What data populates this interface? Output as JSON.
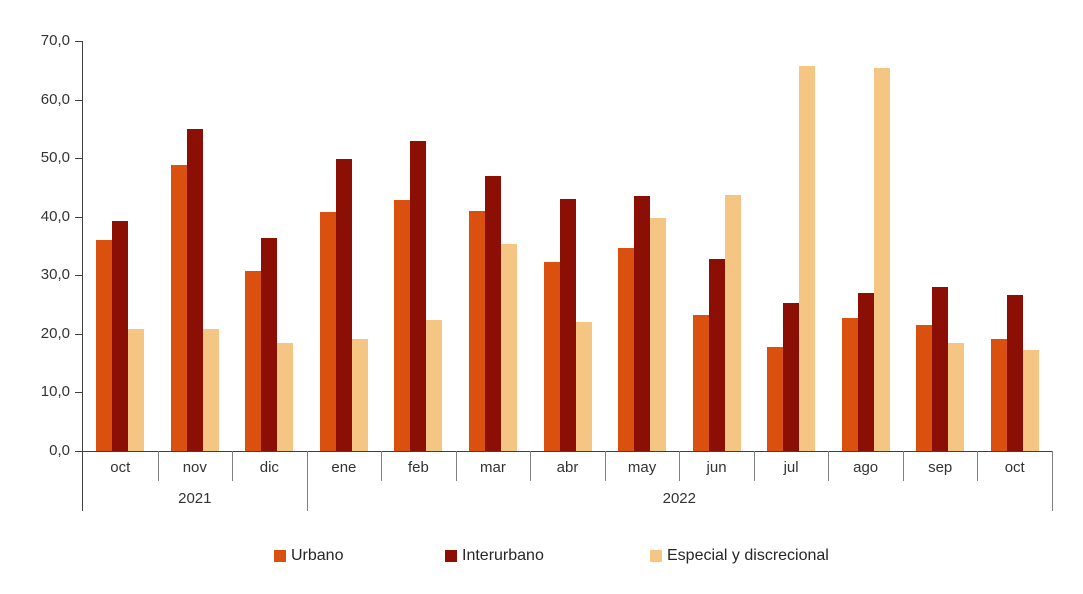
{
  "chart_data": {
    "type": "bar",
    "title": "",
    "xlabel": "",
    "ylabel": "",
    "ylim": [
      0,
      70
    ],
    "y_tick_step": 10,
    "y_tick_labels": [
      "0,0",
      "10,0",
      "20,0",
      "30,0",
      "40,0",
      "50,0",
      "60,0",
      "70,0"
    ],
    "grid": false,
    "legend_position": "bottom",
    "categories": [
      "oct",
      "nov",
      "dic",
      "ene",
      "feb",
      "mar",
      "abr",
      "may",
      "jun",
      "jul",
      "ago",
      "sep",
      "oct"
    ],
    "year_groups": [
      {
        "label": "2021",
        "months": 3
      },
      {
        "label": "2022",
        "months": 10
      }
    ],
    "series": [
      {
        "name": "Urbano",
        "color": "#D9500F",
        "values": [
          36.1,
          48.8,
          30.7,
          40.8,
          42.8,
          40.9,
          32.3,
          34.7,
          23.3,
          17.8,
          22.7,
          21.5,
          19.1
        ]
      },
      {
        "name": "Interurbano",
        "color": "#8C0F06",
        "values": [
          39.3,
          55.0,
          36.4,
          49.9,
          52.9,
          46.9,
          43.1,
          43.5,
          32.7,
          25.2,
          26.9,
          28.0,
          26.6
        ]
      },
      {
        "name": "Especial y discrecional",
        "color": "#F5C583",
        "values": [
          20.9,
          20.9,
          18.5,
          19.1,
          22.4,
          35.3,
          22.1,
          39.8,
          43.7,
          65.8,
          65.4,
          18.4,
          17.2
        ]
      }
    ]
  }
}
